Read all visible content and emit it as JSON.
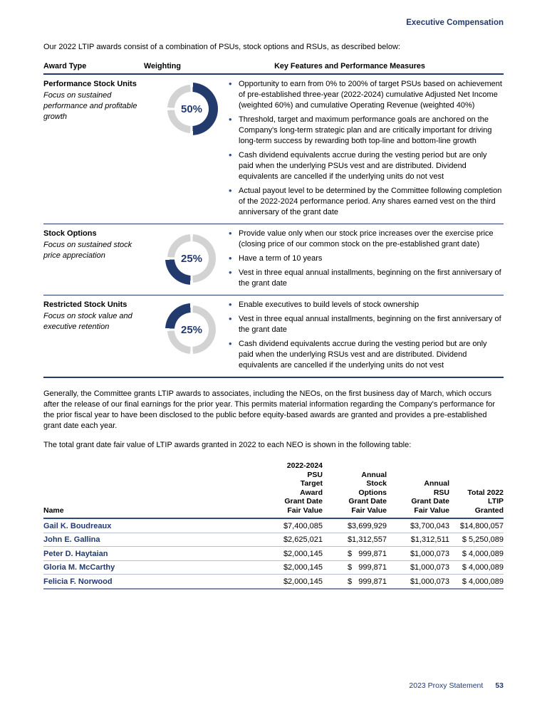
{
  "colors": {
    "navy": "#233a6d",
    "donut_highlight": "#233a6d",
    "donut_track": "#d3d3d3",
    "bullet": "#2f4b8f"
  },
  "page": {
    "section_header": "Executive Compensation",
    "intro": "Our 2022 LTIP awards consist of a combination of PSUs, stock options and RSUs, as described below:",
    "paragraph_1": "Generally, the Committee grants LTIP awards to associates, including the NEOs, on the first business day of March, which occurs after the release of our final earnings for the prior year. This permits material information regarding the Company's performance for the prior fiscal year to have been disclosed to the public before equity-based awards are granted and provides a pre-established grant date each year.",
    "paragraph_2": "The total grant date fair value of LTIP awards granted in 2022 to each NEO is shown in the following table:",
    "footer": {
      "label": "2023 Proxy Statement",
      "page_number": "53"
    }
  },
  "awards_table": {
    "headers": {
      "award_type": "Award Type",
      "weighting": "Weighting",
      "key_features": "Key Features and Performance Measures"
    },
    "rows": [
      {
        "title": "Performance Stock Units",
        "subtitle": "Focus on sustained performance and profitable growth",
        "weighting": {
          "percent_label": "50%",
          "percent": 50,
          "segment_index": 0
        },
        "bullets": [
          "Opportunity to earn from 0% to 200% of target PSUs based on achievement of pre-established three-year (2022-2024) cumulative Adjusted Net Income (weighted 60%) and cumulative Operating Revenue (weighted 40%)",
          "Threshold, target and maximum performance goals are anchored on the Company's long-term strategic plan and are critically important for driving long-term success by rewarding both top-line and bottom-line growth",
          "Cash dividend equivalents accrue during the vesting period but are only paid when the underlying PSUs vest and are distributed. Dividend equivalents are cancelled if the underlying units do not vest",
          "Actual payout level to be determined by the Committee following completion of the 2022-2024 performance period. Any shares earned vest on the third anniversary of the grant date"
        ]
      },
      {
        "title": "Stock Options",
        "subtitle": "Focus on sustained stock price appreciation",
        "weighting": {
          "percent_label": "25%",
          "percent": 25,
          "segment_index": 1
        },
        "bullets": [
          "Provide value only when our stock price increases over the exercise price (closing price of our common stock on the pre-established grant date)",
          "Have a term of 10 years",
          "Vest in three equal annual installments, beginning on the first anniversary of the grant date"
        ]
      },
      {
        "title": "Restricted Stock Units",
        "subtitle": "Focus on stock value and executive retention",
        "weighting": {
          "percent_label": "25%",
          "percent": 25,
          "segment_index": 2
        },
        "bullets": [
          "Enable executives to build levels of stock ownership",
          "Vest in three equal annual installments, beginning on the first anniversary of the grant date",
          "Cash dividend equivalents accrue during the vesting period but are only paid when the underlying RSUs vest and are distributed. Dividend equivalents are cancelled if the underlying units do not vest"
        ]
      }
    ]
  },
  "fair_value_table": {
    "headers": {
      "name": "Name",
      "psu": "2022-2024\nPSU\nTarget\nAward\nGrant Date\nFair Value",
      "options": "Annual\nStock\nOptions\nGrant Date\nFair Value",
      "rsu": "Annual\nRSU\nGrant Date\nFair Value",
      "total": "Total 2022\nLTIP\nGranted"
    },
    "rows": [
      {
        "name": "Gail K. Boudreaux",
        "psu": "$7,400,085",
        "options": "$3,699,929",
        "rsu": "$3,700,043",
        "total": "$14,800,057"
      },
      {
        "name": "John E. Gallina",
        "psu": "$2,625,021",
        "options": "$1,312,557",
        "rsu": "$1,312,511",
        "total": "$ 5,250,089"
      },
      {
        "name": "Peter D. Haytaian",
        "psu": "$2,000,145",
        "options": "$   999,871",
        "rsu": "$1,000,073",
        "total": "$ 4,000,089"
      },
      {
        "name": "Gloria M. McCarthy",
        "psu": "$2,000,145",
        "options": "$   999,871",
        "rsu": "$1,000,073",
        "total": "$ 4,000,089"
      },
      {
        "name": "Felicia F. Norwood",
        "psu": "$2,000,145",
        "options": "$   999,871",
        "rsu": "$1,000,073",
        "total": "$ 4,000,089"
      }
    ]
  }
}
